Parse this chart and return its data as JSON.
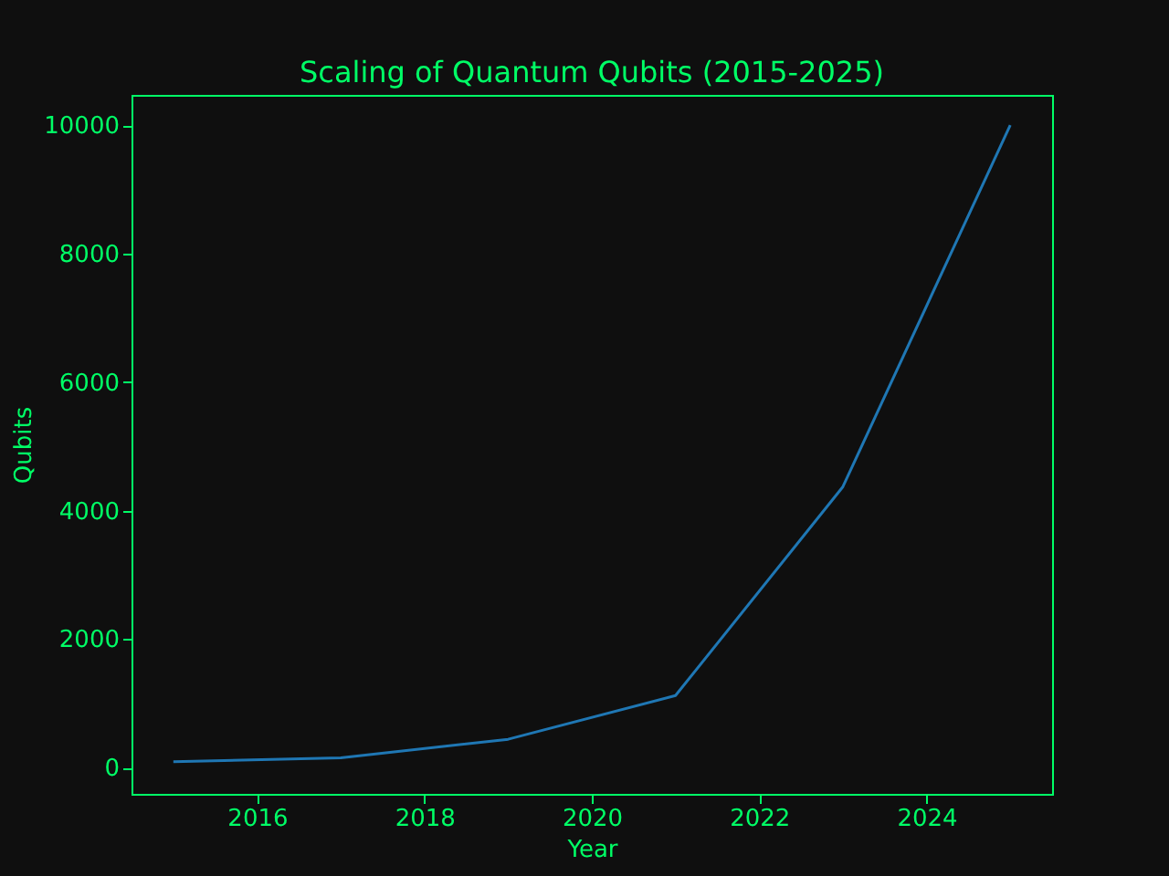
{
  "chart_data": {
    "type": "line",
    "title": "Scaling of Quantum Qubits (2015-2025)",
    "xlabel": "Year",
    "ylabel": "Qubits",
    "x": [
      2015,
      2017,
      2019,
      2021,
      2023,
      2025
    ],
    "series": [
      {
        "color": "#1f77b4",
        "values": [
          90,
          150,
          440,
          1120,
          4370,
          10000
        ]
      }
    ],
    "xlim": [
      2014.5,
      2025.5
    ],
    "xticks": [
      2016,
      2018,
      2020,
      2022,
      2024
    ],
    "ylim": [
      -410,
      10470
    ],
    "yticks": [
      0,
      2000,
      4000,
      6000,
      8000,
      10000
    ],
    "grid": false,
    "marker": "none"
  }
}
